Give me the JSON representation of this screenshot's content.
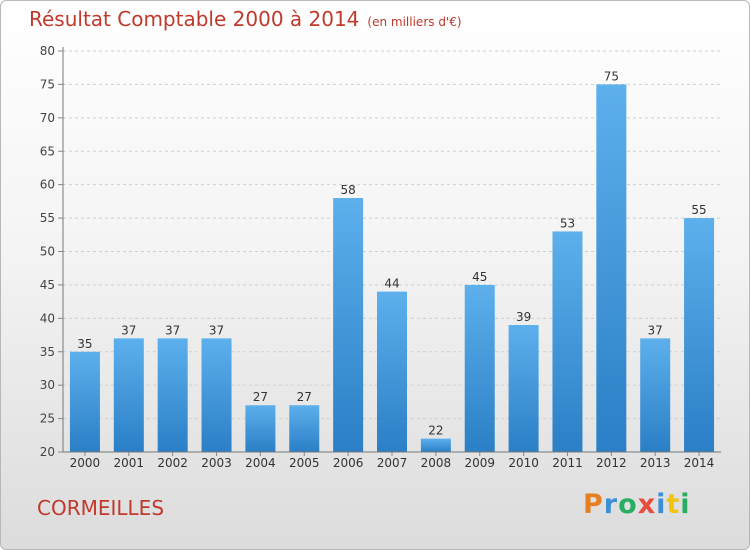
{
  "header": {
    "title": "Résultat Comptable 2000 à 2014",
    "subtitle": "(en milliers d'€)"
  },
  "location": "CORMEILLES",
  "brand": "Proxiti",
  "colors": {
    "bar": "#4aa0e2",
    "bar_dark": "#2f86cf",
    "title": "#c0392b"
  },
  "chart_data": {
    "type": "bar",
    "title": "Résultat Comptable 2000 à 2014",
    "subtitle": "(en milliers d'€)",
    "xlabel": "",
    "ylabel": "",
    "categories": [
      "2000",
      "2001",
      "2002",
      "2003",
      "2004",
      "2005",
      "2006",
      "2007",
      "2008",
      "2009",
      "2010",
      "2011",
      "2012",
      "2013",
      "2014"
    ],
    "values": [
      35,
      37,
      37,
      37,
      27,
      27,
      58,
      44,
      22,
      45,
      39,
      53,
      75,
      37,
      55
    ],
    "ylim": [
      20,
      80
    ],
    "yticks": [
      20,
      25,
      30,
      35,
      40,
      45,
      50,
      55,
      60,
      65,
      70,
      75,
      80
    ],
    "grid": true,
    "legend": "none"
  }
}
